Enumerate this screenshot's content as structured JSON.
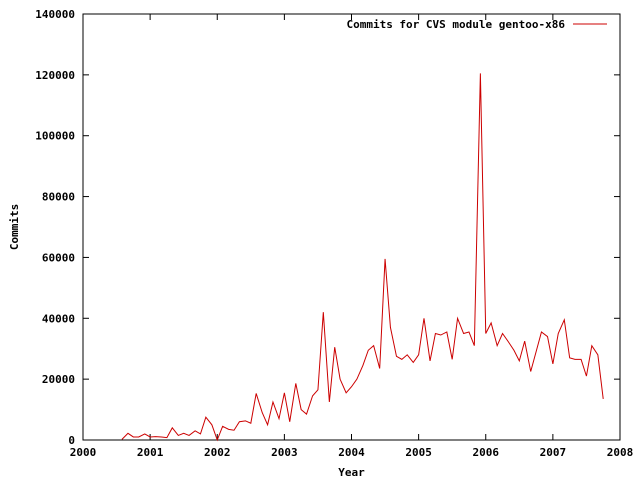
{
  "chart_data": {
    "type": "line",
    "xlabel": "Year",
    "ylabel": "Commits",
    "xlim": [
      2000,
      2008
    ],
    "ylim": [
      0,
      140000
    ],
    "x_ticks": [
      2000,
      2001,
      2002,
      2003,
      2004,
      2005,
      2006,
      2007,
      2008
    ],
    "y_ticks": [
      0,
      20000,
      40000,
      60000,
      80000,
      100000,
      120000,
      140000
    ],
    "x_tick_labels": [
      "2000",
      "2001",
      "2002",
      "2003",
      "2004",
      "2005",
      "2006",
      "2007",
      "2008"
    ],
    "y_tick_labels": [
      "0",
      "20000",
      "40000",
      "60000",
      "80000",
      "100000",
      "120000",
      "140000"
    ],
    "grid": false,
    "legend_position": "top-right",
    "series": [
      {
        "name": "Commits for CVS module gentoo-x86",
        "color": "#cc0000",
        "x": [
          2000.58,
          2000.67,
          2000.75,
          2000.83,
          2000.92,
          2001.0,
          2001.08,
          2001.17,
          2001.25,
          2001.33,
          2001.42,
          2001.5,
          2001.58,
          2001.67,
          2001.75,
          2001.83,
          2001.92,
          2002.0,
          2002.08,
          2002.17,
          2002.25,
          2002.33,
          2002.42,
          2002.5,
          2002.58,
          2002.67,
          2002.75,
          2002.83,
          2002.92,
          2003.0,
          2003.08,
          2003.17,
          2003.25,
          2003.33,
          2003.42,
          2003.5,
          2003.58,
          2003.67,
          2003.75,
          2003.83,
          2003.92,
          2004.0,
          2004.08,
          2004.17,
          2004.25,
          2004.33,
          2004.42,
          2004.5,
          2004.58,
          2004.67,
          2004.75,
          2004.83,
          2004.92,
          2005.0,
          2005.08,
          2005.17,
          2005.25,
          2005.33,
          2005.42,
          2005.5,
          2005.58,
          2005.67,
          2005.75,
          2005.83,
          2005.92,
          2006.0,
          2006.08,
          2006.17,
          2006.25,
          2006.33,
          2006.42,
          2006.5,
          2006.58,
          2006.67,
          2006.75,
          2006.83,
          2006.92,
          2007.0,
          2007.08,
          2007.17,
          2007.25,
          2007.33,
          2007.42,
          2007.5,
          2007.58,
          2007.67,
          2007.75
        ],
        "values": [
          200,
          2200,
          1000,
          1000,
          2000,
          1000,
          1100,
          1000,
          800,
          4000,
          1500,
          2200,
          1500,
          3000,
          2000,
          7500,
          5000,
          0,
          4500,
          3500,
          3200,
          6000,
          6300,
          5500,
          15300,
          9000,
          5000,
          12500,
          7000,
          15500,
          6000,
          18600,
          10000,
          8500,
          14500,
          16500,
          42000,
          12500,
          30500,
          20000,
          15500,
          17500,
          20000,
          24500,
          29500,
          31000,
          23500,
          59500,
          37000,
          27500,
          26500,
          28000,
          25500,
          28000,
          40000,
          26000,
          35000,
          34500,
          35500,
          26500,
          40000,
          35000,
          35500,
          31000,
          120500,
          35000,
          38500,
          31000,
          35000,
          32500,
          29500,
          26000,
          32500,
          22500,
          29000,
          35500,
          34000,
          25000,
          35000,
          39500,
          27000,
          26500,
          26500,
          21000,
          31000,
          28000,
          13500
        ]
      }
    ]
  }
}
